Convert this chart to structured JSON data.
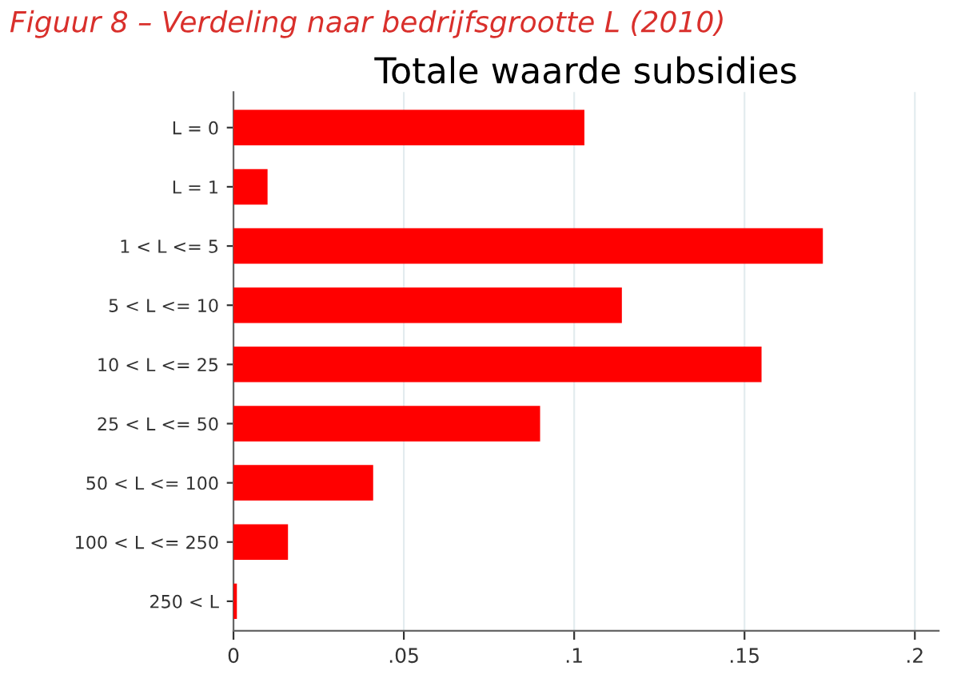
{
  "chart_data": {
    "type": "bar",
    "orientation": "horizontal",
    "title": "Totale waarde subsidies",
    "annotations": [
      "Figuur 8 – Verdeling naar bedrijfsgrootte L (2010)"
    ],
    "categories": [
      "L = 0",
      "L = 1",
      "1 < L <= 5",
      "5 < L <= 10",
      "10 < L <= 25",
      "25 < L <= 50",
      "50 < L <= 100",
      "100 < L <= 250",
      "250 < L"
    ],
    "values": [
      0.103,
      0.01,
      0.173,
      0.114,
      0.155,
      0.09,
      0.041,
      0.016,
      0.001
    ],
    "color": "#ff0000",
    "xlim": [
      0,
      0.207
    ],
    "xticks": [
      0,
      {
        "value": 0.05,
        "label": ".05"
      },
      {
        "value": 0.1,
        "label": ".1"
      },
      {
        "value": 0.15,
        "label": ".15"
      },
      {
        "value": 0.2,
        "label": ".2"
      }
    ],
    "grid": "x"
  }
}
